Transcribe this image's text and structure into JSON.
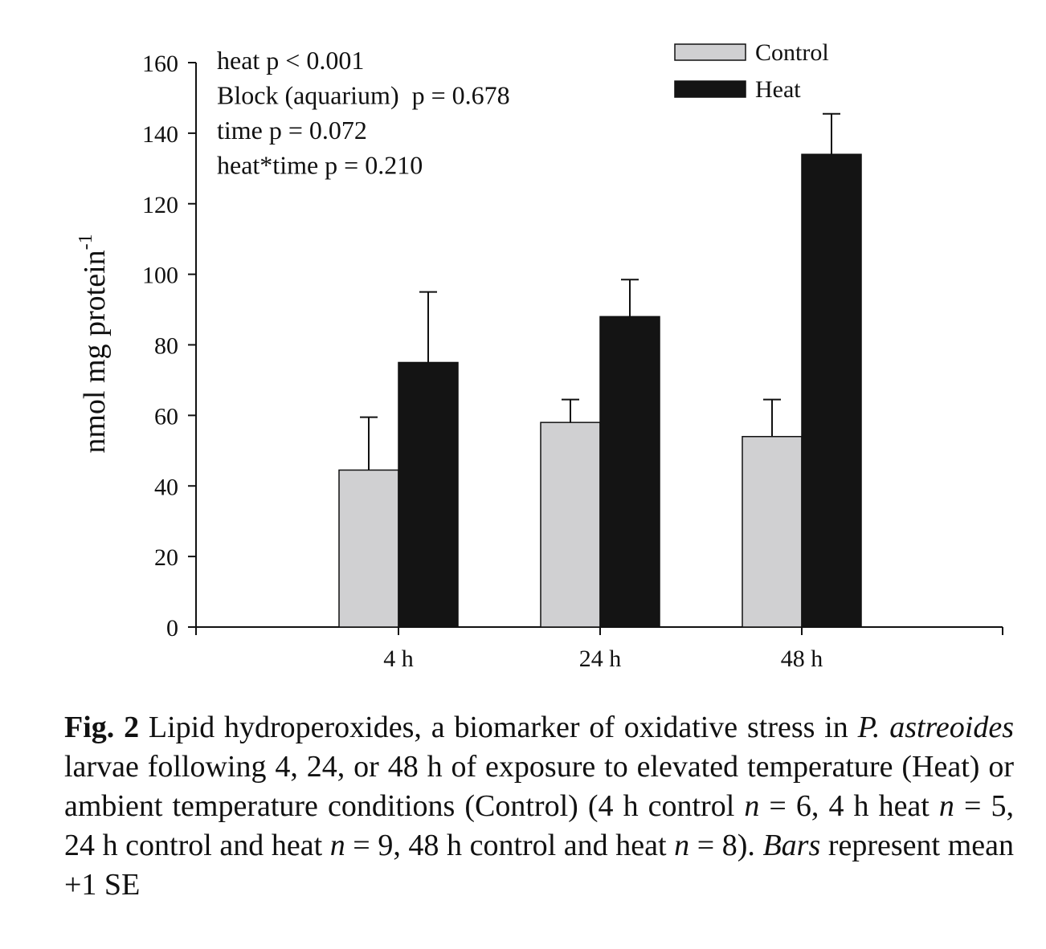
{
  "chart_data": {
    "type": "bar",
    "categories": [
      "4 h",
      "24 h",
      "48 h"
    ],
    "series": [
      {
        "name": "Control",
        "color": "#d0d0d2",
        "values": [
          44.5,
          58,
          54
        ],
        "se": [
          15,
          6.5,
          10.5
        ]
      },
      {
        "name": "Heat",
        "color": "#141414",
        "values": [
          75,
          88,
          134
        ],
        "se": [
          20,
          10.5,
          11.5
        ]
      }
    ],
    "ylabel_main": "nmol mg protein",
    "ylabel_sup": "-1",
    "xlabel": "",
    "title": "",
    "ylim": [
      0,
      160
    ],
    "yticks": [
      0,
      20,
      40,
      60,
      80,
      100,
      120,
      140,
      160
    ],
    "legend_position": "top-right",
    "grid": false,
    "annotations": [
      "heat p < 0.001",
      "Block (aquarium)  p = 0.678",
      "time p = 0.072",
      "heat*time p = 0.210"
    ]
  },
  "caption": {
    "label": "Fig. 2",
    "t1": " Lipid hydroperoxides, a biomarker of oxidative stress in ",
    "species": "P. astreoides",
    "t2": " larvae following 4, 24, or 48 h of exposure to elevated temperature (Heat) or ambient temperature conditions (Control) (4 h control ",
    "n1": "n",
    "t3": " = 6, 4 h heat ",
    "n2": "n",
    "t4": " = 5, 24 h control and heat ",
    "n3": "n",
    "t5": " = 9, 48 h control and heat ",
    "n4": "n",
    "t6": " = 8). ",
    "bars_word": "Bars",
    "t7": " represent mean +1 SE"
  }
}
